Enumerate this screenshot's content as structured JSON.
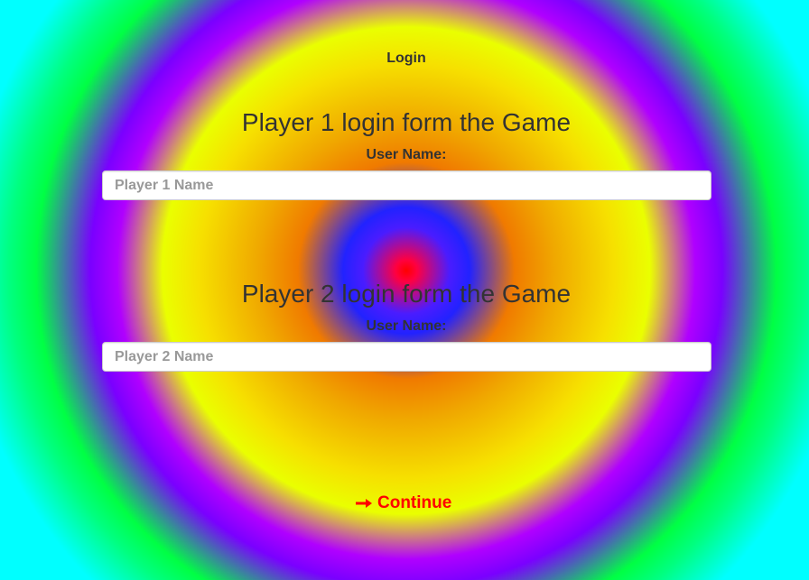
{
  "page": {
    "title": "Login"
  },
  "player1": {
    "heading": "Player 1 login form the Game",
    "label": "User Name:",
    "placeholder": "Player 1 Name",
    "value": ""
  },
  "player2": {
    "heading": "Player 2 login form the Game",
    "label": "User Name:",
    "placeholder": "Player 2 Name",
    "value": ""
  },
  "continue": {
    "label": "Continue",
    "icon": "right-arrow-icon",
    "color": "#ff0000"
  },
  "colors": {
    "text": "#333333",
    "center": "#ff0000",
    "ring_blue": "#2222ff",
    "ring_orange": "#f07a00",
    "ring_yellow": "#eaff00",
    "ring_purple": "#7a00ff",
    "ring_green": "#00ff44",
    "ring_cyan": "#00ffff"
  }
}
